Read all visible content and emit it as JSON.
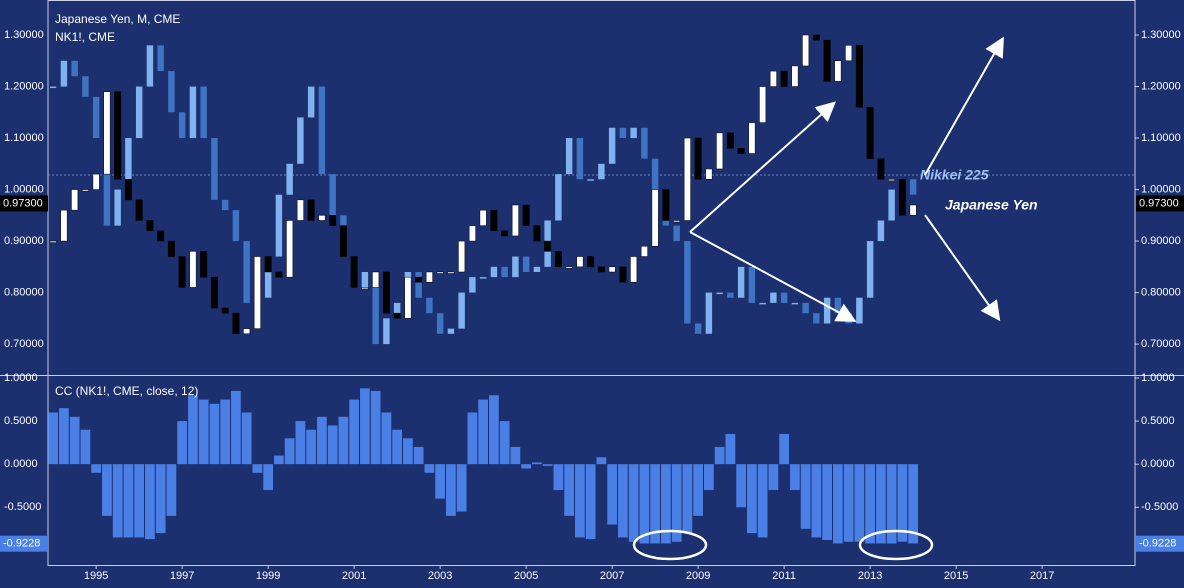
{
  "chart_data": [
    {
      "type": "candlestick",
      "title": "Japanese Yen, M, CME",
      "subtitle": "NK1!, CME",
      "x": [
        1994,
        1994.25,
        1994.5,
        1994.75,
        1995,
        1995.25,
        1995.5,
        1995.75,
        1996,
        1996.25,
        1996.5,
        1996.75,
        1997,
        1997.25,
        1997.5,
        1997.75,
        1998,
        1998.25,
        1998.5,
        1998.75,
        1999,
        1999.25,
        1999.5,
        1999.75,
        2000,
        2000.25,
        2000.5,
        2000.75,
        2001,
        2001.25,
        2001.5,
        2001.75,
        2002,
        2002.25,
        2002.5,
        2002.75,
        2003,
        2003.25,
        2003.5,
        2003.75,
        2004,
        2004.25,
        2004.5,
        2004.75,
        2005,
        2005.25,
        2005.5,
        2005.75,
        2006,
        2006.25,
        2006.5,
        2006.75,
        2007,
        2007.25,
        2007.5,
        2007.75,
        2008,
        2008.25,
        2008.5,
        2008.75,
        2009,
        2009.25,
        2009.5,
        2009.75,
        2010,
        2010.25,
        2010.5,
        2010.75,
        2011,
        2011.25,
        2011.5,
        2011.75,
        2012,
        2012.25,
        2012.5,
        2012.75,
        2013,
        2013.25,
        2013.5,
        2013.75,
        2014
      ],
      "series": [
        {
          "name": "Nikkei 225",
          "color": "#7fb2ee",
          "down_color": "#3f74c4",
          "values": [
            1.2,
            1.25,
            1.22,
            1.18,
            1.1,
            0.93,
            1.0,
            1.1,
            1.2,
            1.28,
            1.23,
            1.15,
            1.1,
            1.2,
            1.1,
            0.98,
            0.96,
            0.9,
            0.78,
            0.79,
            0.87,
            0.99,
            1.05,
            1.14,
            1.2,
            1.03,
            0.95,
            0.87,
            0.81,
            0.84,
            0.7,
            0.75,
            0.78,
            0.84,
            0.79,
            0.76,
            0.72,
            0.73,
            0.8,
            0.83,
            0.83,
            0.85,
            0.83,
            0.87,
            0.84,
            0.85,
            0.94,
            1.03,
            1.1,
            1.02,
            1.02,
            1.05,
            1.12,
            1.1,
            1.12,
            1.06,
            0.96,
            0.93,
            0.9,
            0.74,
            0.72,
            0.8,
            0.8,
            0.79,
            0.85,
            0.78,
            0.78,
            0.8,
            0.78,
            0.78,
            0.76,
            0.74,
            0.79,
            0.76,
            0.74,
            0.79,
            0.9,
            0.94,
            1.0,
            1.02,
            0.99
          ]
        },
        {
          "name": "Japanese Yen",
          "color": "#ffffff",
          "down_color": "#000000",
          "values": [
            0.9,
            0.96,
            1.0,
            1.0,
            1.03,
            1.19,
            1.02,
            0.98,
            0.94,
            0.92,
            0.9,
            0.87,
            0.81,
            0.88,
            0.83,
            0.77,
            0.76,
            0.72,
            0.73,
            0.87,
            0.84,
            0.83,
            0.94,
            0.98,
            0.94,
            0.95,
            0.93,
            0.87,
            0.81,
            0.81,
            0.84,
            0.76,
            0.75,
            0.83,
            0.82,
            0.84,
            0.84,
            0.84,
            0.9,
            0.93,
            0.96,
            0.92,
            0.91,
            0.97,
            0.93,
            0.9,
            0.88,
            0.85,
            0.85,
            0.87,
            0.85,
            0.84,
            0.85,
            0.82,
            0.87,
            0.89,
            1.0,
            0.94,
            0.94,
            1.1,
            1.02,
            1.04,
            1.11,
            1.08,
            1.07,
            1.13,
            1.2,
            1.23,
            1.2,
            1.24,
            1.3,
            1.29,
            1.21,
            1.25,
            1.28,
            1.16,
            1.06,
            1.02,
            1.02,
            0.95,
            0.97
          ]
        }
      ],
      "xlim": [
        1993.88,
        2019.16
      ],
      "ylim": [
        0.64,
        1.368
      ],
      "yticks": [
        {
          "value": 0.7,
          "label": "0.70000"
        },
        {
          "value": 0.8,
          "label": "0.80000"
        },
        {
          "value": 0.9,
          "label": "0.90000"
        },
        {
          "value": 1.0,
          "label": "1.00000"
        },
        {
          "value": 1.1,
          "label": "1.10000"
        },
        {
          "value": 1.2,
          "label": "1.20000"
        },
        {
          "value": 1.3,
          "label": "1.30000"
        }
      ],
      "last_price": {
        "value": 0.973,
        "label": "0.97300"
      },
      "annotations": [
        "Nikkei 225",
        "Japanese Yen"
      ]
    },
    {
      "type": "bar",
      "title": "CC (NK1!, CME, close, 12)",
      "color": "#4a7fe6",
      "values": [
        0.6,
        0.65,
        0.55,
        0.4,
        -0.1,
        -0.6,
        -0.85,
        -0.85,
        -0.85,
        -0.87,
        -0.8,
        -0.6,
        0.5,
        0.8,
        0.75,
        0.7,
        0.75,
        0.85,
        0.6,
        -0.1,
        -0.3,
        0.1,
        0.3,
        0.5,
        0.4,
        0.55,
        0.45,
        0.55,
        0.75,
        0.88,
        0.85,
        0.6,
        0.4,
        0.3,
        0.2,
        -0.1,
        -0.4,
        -0.6,
        -0.55,
        0.6,
        0.75,
        0.8,
        0.5,
        0.2,
        -0.05,
        0.02,
        -0.02,
        -0.3,
        -0.6,
        -0.85,
        -0.87,
        0.08,
        -0.7,
        -0.85,
        -0.9,
        -0.92,
        -0.92,
        -0.92,
        -0.9,
        -0.8,
        -0.6,
        -0.3,
        0.2,
        0.35,
        -0.5,
        -0.8,
        -0.85,
        -0.3,
        0.35,
        -0.3,
        -0.75,
        -0.85,
        -0.88,
        -0.92,
        -0.9,
        -0.9,
        -0.92,
        -0.92,
        -0.92,
        -0.9,
        -0.92
      ],
      "ylim": [
        -1.17,
        1.035
      ],
      "yticks": [
        {
          "value": -0.5,
          "label": "-0.5000"
        },
        {
          "value": 0,
          "label": "0.0000"
        },
        {
          "value": 0.5,
          "label": "0.5000"
        },
        {
          "value": 1,
          "label": "1.0000"
        }
      ],
      "last_value": {
        "value": -0.9228,
        "label": "-0.9228"
      },
      "xticks": [
        1995,
        1997,
        1999,
        2001,
        2003,
        2005,
        2007,
        2009,
        2011,
        2013,
        2015,
        2017
      ]
    }
  ]
}
